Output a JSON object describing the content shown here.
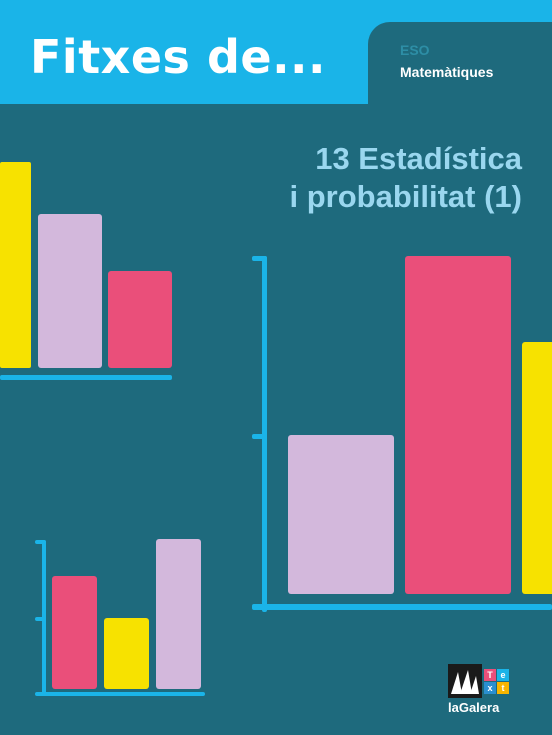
{
  "cover": {
    "series_title": "Fitxes de...",
    "level": "ESO",
    "subject": "Matemàtiques",
    "title_line1": "13 Estadística",
    "title_line2": "i probabilitat (1)",
    "publisher": "laGalera",
    "logo_letters": [
      "T",
      "e",
      "x",
      "t"
    ]
  },
  "colors": {
    "background": "#1e6a7d",
    "banner": "#1ab4e8",
    "axis": "#1ab4e8",
    "yellow": "#f7e200",
    "lilac": "#d3b8dc",
    "pink": "#ea4f7a",
    "title": "#9ad7ef"
  }
}
